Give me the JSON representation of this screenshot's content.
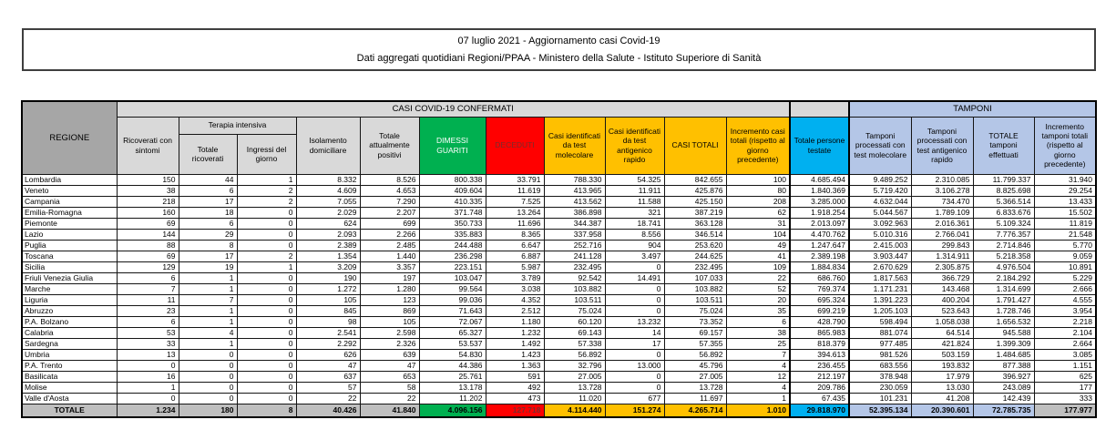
{
  "title": {
    "line1": "07 luglio 2021 - Aggiornamento casi Covid-19",
    "line2": "Dati aggregati quotidiani Regioni/PPAA - Ministero della Salute - Istituto Superiore di Sanità"
  },
  "colors": {
    "green": "#00B050",
    "red": "#FF0000",
    "red_text": "#7c2b2b",
    "yellow": "#FFC000",
    "cyan": "#00B0F0",
    "periwinkle": "#B4C6E7",
    "gray_header": "#D9D9D9",
    "gray_regione": "#A6A6A6",
    "gray_total": "#BFBFBF"
  },
  "table": {
    "group_headers": {
      "regione": "REGIONE",
      "casi_confermati": "CASI COVID-19 CONFERMATI",
      "tamponi": "TAMPONI",
      "terapia_intensiva": "Terapia intensiva"
    },
    "column_labels": [
      "Ricoverati con sintomi",
      "Totale ricoverati",
      "Ingressi del giorno",
      "Isolamento domiciliare",
      "Totale attualmente positivi",
      "DIMESSI GUARITI",
      "DECEDUTI",
      "Casi identificati da test molecolare",
      "Casi identificati da test antigenico rapido",
      "CASI TOTALI",
      "Incremento casi totali (rispetto al giorno precedente)",
      "Totale persone testate",
      "Tamponi processati con test molecolare",
      "Tamponi processati con test antigenico rapido",
      "TOTALE tamponi effettuati",
      "Incremento tamponi totali (rispetto al giorno precedente)"
    ],
    "rows": [
      {
        "regione": "Lombardia",
        "values": [
          "150",
          "44",
          "1",
          "8.332",
          "8.526",
          "800.338",
          "33.791",
          "788.330",
          "54.325",
          "842.655",
          "100",
          "4.685.494",
          "9.489.252",
          "2.310.085",
          "11.799.337",
          "31.940"
        ]
      },
      {
        "regione": "Veneto",
        "values": [
          "38",
          "6",
          "2",
          "4.609",
          "4.653",
          "409.604",
          "11.619",
          "413.965",
          "11.911",
          "425.876",
          "80",
          "1.840.369",
          "5.719.420",
          "3.106.278",
          "8.825.698",
          "29.254"
        ]
      },
      {
        "regione": "Campania",
        "values": [
          "218",
          "17",
          "2",
          "7.055",
          "7.290",
          "410.335",
          "7.525",
          "413.562",
          "11.588",
          "425.150",
          "208",
          "3.285.000",
          "4.632.044",
          "734.470",
          "5.366.514",
          "13.433"
        ]
      },
      {
        "regione": "Emilia-Romagna",
        "values": [
          "160",
          "18",
          "0",
          "2.029",
          "2.207",
          "371.748",
          "13.264",
          "386.898",
          "321",
          "387.219",
          "62",
          "1.918.254",
          "5.044.567",
          "1.789.109",
          "6.833.676",
          "15.502"
        ]
      },
      {
        "regione": "Piemonte",
        "values": [
          "69",
          "6",
          "0",
          "624",
          "699",
          "350.733",
          "11.696",
          "344.387",
          "18.741",
          "363.128",
          "31",
          "2.013.097",
          "3.092.963",
          "2.016.361",
          "5.109.324",
          "11.819"
        ]
      },
      {
        "regione": "Lazio",
        "values": [
          "144",
          "29",
          "0",
          "2.093",
          "2.266",
          "335.883",
          "8.365",
          "337.958",
          "8.556",
          "346.514",
          "104",
          "4.470.762",
          "5.010.316",
          "2.766.041",
          "7.776.357",
          "21.548"
        ]
      },
      {
        "regione": "Puglia",
        "values": [
          "88",
          "8",
          "0",
          "2.389",
          "2.485",
          "244.488",
          "6.647",
          "252.716",
          "904",
          "253.620",
          "49",
          "1.247.647",
          "2.415.003",
          "299.843",
          "2.714.846",
          "5.770"
        ]
      },
      {
        "regione": "Toscana",
        "values": [
          "69",
          "17",
          "2",
          "1.354",
          "1.440",
          "236.298",
          "6.887",
          "241.128",
          "3.497",
          "244.625",
          "41",
          "2.389.198",
          "3.903.447",
          "1.314.911",
          "5.218.358",
          "9.059"
        ]
      },
      {
        "regione": "Sicilia",
        "values": [
          "129",
          "19",
          "1",
          "3.209",
          "3.357",
          "223.151",
          "5.987",
          "232.495",
          "0",
          "232.495",
          "109",
          "1.884.834",
          "2.670.629",
          "2.305.875",
          "4.976.504",
          "10.891"
        ]
      },
      {
        "regione": "Friuli Venezia Giulia",
        "values": [
          "6",
          "1",
          "0",
          "190",
          "197",
          "103.047",
          "3.789",
          "92.542",
          "14.491",
          "107.033",
          "22",
          "686.760",
          "1.817.563",
          "366.729",
          "2.184.292",
          "5.229"
        ]
      },
      {
        "regione": "Marche",
        "values": [
          "7",
          "1",
          "0",
          "1.272",
          "1.280",
          "99.564",
          "3.038",
          "103.882",
          "0",
          "103.882",
          "52",
          "769.374",
          "1.171.231",
          "143.468",
          "1.314.699",
          "2.666"
        ]
      },
      {
        "regione": "Liguria",
        "values": [
          "11",
          "7",
          "0",
          "105",
          "123",
          "99.036",
          "4.352",
          "103.511",
          "0",
          "103.511",
          "20",
          "695.324",
          "1.391.223",
          "400.204",
          "1.791.427",
          "4.555"
        ]
      },
      {
        "regione": "Abruzzo",
        "values": [
          "23",
          "1",
          "0",
          "845",
          "869",
          "71.643",
          "2.512",
          "75.024",
          "0",
          "75.024",
          "35",
          "699.219",
          "1.205.103",
          "523.643",
          "1.728.746",
          "3.954"
        ]
      },
      {
        "regione": "P.A. Bolzano",
        "values": [
          "6",
          "1",
          "0",
          "98",
          "105",
          "72.067",
          "1.180",
          "60.120",
          "13.232",
          "73.352",
          "6",
          "428.790",
          "598.494",
          "1.058.038",
          "1.656.532",
          "2.218"
        ]
      },
      {
        "regione": "Calabria",
        "values": [
          "53",
          "4",
          "0",
          "2.541",
          "2.598",
          "65.327",
          "1.232",
          "69.143",
          "14",
          "69.157",
          "38",
          "865.983",
          "881.074",
          "64.514",
          "945.588",
          "2.104"
        ]
      },
      {
        "regione": "Sardegna",
        "values": [
          "33",
          "1",
          "0",
          "2.292",
          "2.326",
          "53.537",
          "1.492",
          "57.338",
          "17",
          "57.355",
          "25",
          "818.379",
          "977.485",
          "421.824",
          "1.399.309",
          "2.664"
        ]
      },
      {
        "regione": "Umbria",
        "values": [
          "13",
          "0",
          "0",
          "626",
          "639",
          "54.830",
          "1.423",
          "56.892",
          "0",
          "56.892",
          "7",
          "394.613",
          "981.526",
          "503.159",
          "1.484.685",
          "3.085"
        ]
      },
      {
        "regione": "P.A. Trento",
        "values": [
          "0",
          "0",
          "0",
          "47",
          "47",
          "44.386",
          "1.363",
          "32.796",
          "13.000",
          "45.796",
          "4",
          "236.455",
          "683.556",
          "193.832",
          "877.388",
          "1.151"
        ]
      },
      {
        "regione": "Basilicata",
        "values": [
          "16",
          "0",
          "0",
          "637",
          "653",
          "25.761",
          "591",
          "27.005",
          "0",
          "27.005",
          "12",
          "212.197",
          "378.948",
          "17.979",
          "396.927",
          "625"
        ]
      },
      {
        "regione": "Molise",
        "values": [
          "1",
          "0",
          "0",
          "57",
          "58",
          "13.178",
          "492",
          "13.728",
          "0",
          "13.728",
          "4",
          "209.786",
          "230.059",
          "13.030",
          "243.089",
          "177"
        ]
      },
      {
        "regione": "Valle d'Aosta",
        "values": [
          "0",
          "0",
          "0",
          "22",
          "22",
          "11.202",
          "473",
          "11.020",
          "677",
          "11.697",
          "1",
          "67.435",
          "101.231",
          "41.208",
          "142.439",
          "333"
        ]
      }
    ],
    "total": {
      "label": "TOTALE",
      "values": [
        "1.234",
        "180",
        "8",
        "40.426",
        "41.840",
        "4.096.156",
        "127.718",
        "4.114.440",
        "151.274",
        "4.265.714",
        "1.010",
        "29.818.970",
        "52.395.134",
        "20.390.601",
        "72.785.735",
        "177.977"
      ]
    }
  }
}
